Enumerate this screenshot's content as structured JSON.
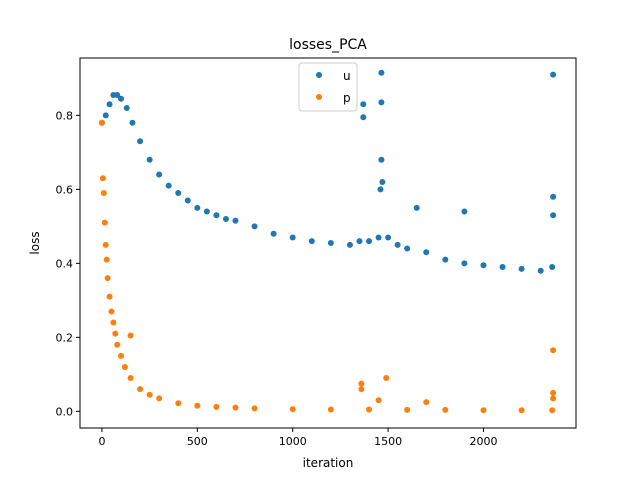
{
  "chart_data": {
    "type": "scatter",
    "title": "losses_PCA",
    "xlabel": "iteration",
    "ylabel": "loss",
    "xlim": [
      -115,
      2485
    ],
    "ylim": [
      -0.045,
      0.955
    ],
    "xticks": [
      0,
      500,
      1000,
      1500,
      2000
    ],
    "xtick_labels": [
      "0",
      "500",
      "1000",
      "1500",
      "2000"
    ],
    "yticks": [
      0.0,
      0.2,
      0.4,
      0.6,
      0.8
    ],
    "ytick_labels": [
      "0.0",
      "0.2",
      "0.4",
      "0.6",
      "0.8"
    ],
    "grid": false,
    "legend_position": "upper center",
    "series": [
      {
        "name": "u",
        "color": "#1f77b4",
        "x": [
          0,
          20,
          40,
          60,
          80,
          100,
          130,
          160,
          200,
          250,
          300,
          350,
          400,
          450,
          500,
          550,
          600,
          650,
          700,
          800,
          900,
          1000,
          1100,
          1200,
          1300,
          1350,
          1400,
          1450,
          1460,
          1470,
          1500,
          1550,
          1600,
          1700,
          1800,
          1900,
          2000,
          2100,
          2200,
          2300,
          2360
        ],
        "y": [
          0.78,
          0.8,
          0.83,
          0.855,
          0.855,
          0.845,
          0.82,
          0.78,
          0.73,
          0.68,
          0.64,
          0.61,
          0.59,
          0.57,
          0.55,
          0.54,
          0.53,
          0.52,
          0.515,
          0.5,
          0.48,
          0.47,
          0.46,
          0.455,
          0.45,
          0.46,
          0.46,
          0.47,
          0.6,
          0.62,
          0.47,
          0.45,
          0.44,
          0.43,
          0.41,
          0.4,
          0.395,
          0.39,
          0.385,
          0.38,
          0.39
        ],
        "outliers": [
          {
            "x": 1370,
            "y": 0.83
          },
          {
            "x": 1370,
            "y": 0.795
          },
          {
            "x": 1465,
            "y": 0.915
          },
          {
            "x": 1465,
            "y": 0.835
          },
          {
            "x": 1465,
            "y": 0.68
          },
          {
            "x": 2365,
            "y": 0.91
          },
          {
            "x": 2365,
            "y": 0.58
          },
          {
            "x": 2365,
            "y": 0.53
          },
          {
            "x": 1650,
            "y": 0.55
          },
          {
            "x": 1900,
            "y": 0.54
          }
        ]
      },
      {
        "name": "p",
        "color": "#ff7f0e",
        "x": [
          0,
          5,
          10,
          15,
          20,
          25,
          30,
          40,
          50,
          60,
          70,
          80,
          100,
          120,
          150,
          200,
          250,
          300,
          400,
          500,
          600,
          700,
          800,
          1000,
          1200,
          1400,
          1600,
          1800,
          2000,
          2200,
          2360
        ],
        "y": [
          0.78,
          0.63,
          0.59,
          0.51,
          0.45,
          0.41,
          0.36,
          0.31,
          0.27,
          0.24,
          0.21,
          0.18,
          0.15,
          0.12,
          0.09,
          0.06,
          0.045,
          0.035,
          0.022,
          0.015,
          0.012,
          0.01,
          0.008,
          0.006,
          0.005,
          0.005,
          0.004,
          0.004,
          0.003,
          0.003,
          0.003
        ],
        "outliers": [
          {
            "x": 150,
            "y": 0.205
          },
          {
            "x": 1360,
            "y": 0.075
          },
          {
            "x": 1360,
            "y": 0.06
          },
          {
            "x": 1490,
            "y": 0.09
          },
          {
            "x": 1450,
            "y": 0.03
          },
          {
            "x": 1700,
            "y": 0.025
          },
          {
            "x": 2365,
            "y": 0.165
          },
          {
            "x": 2365,
            "y": 0.05
          },
          {
            "x": 2365,
            "y": 0.035
          }
        ]
      }
    ]
  }
}
